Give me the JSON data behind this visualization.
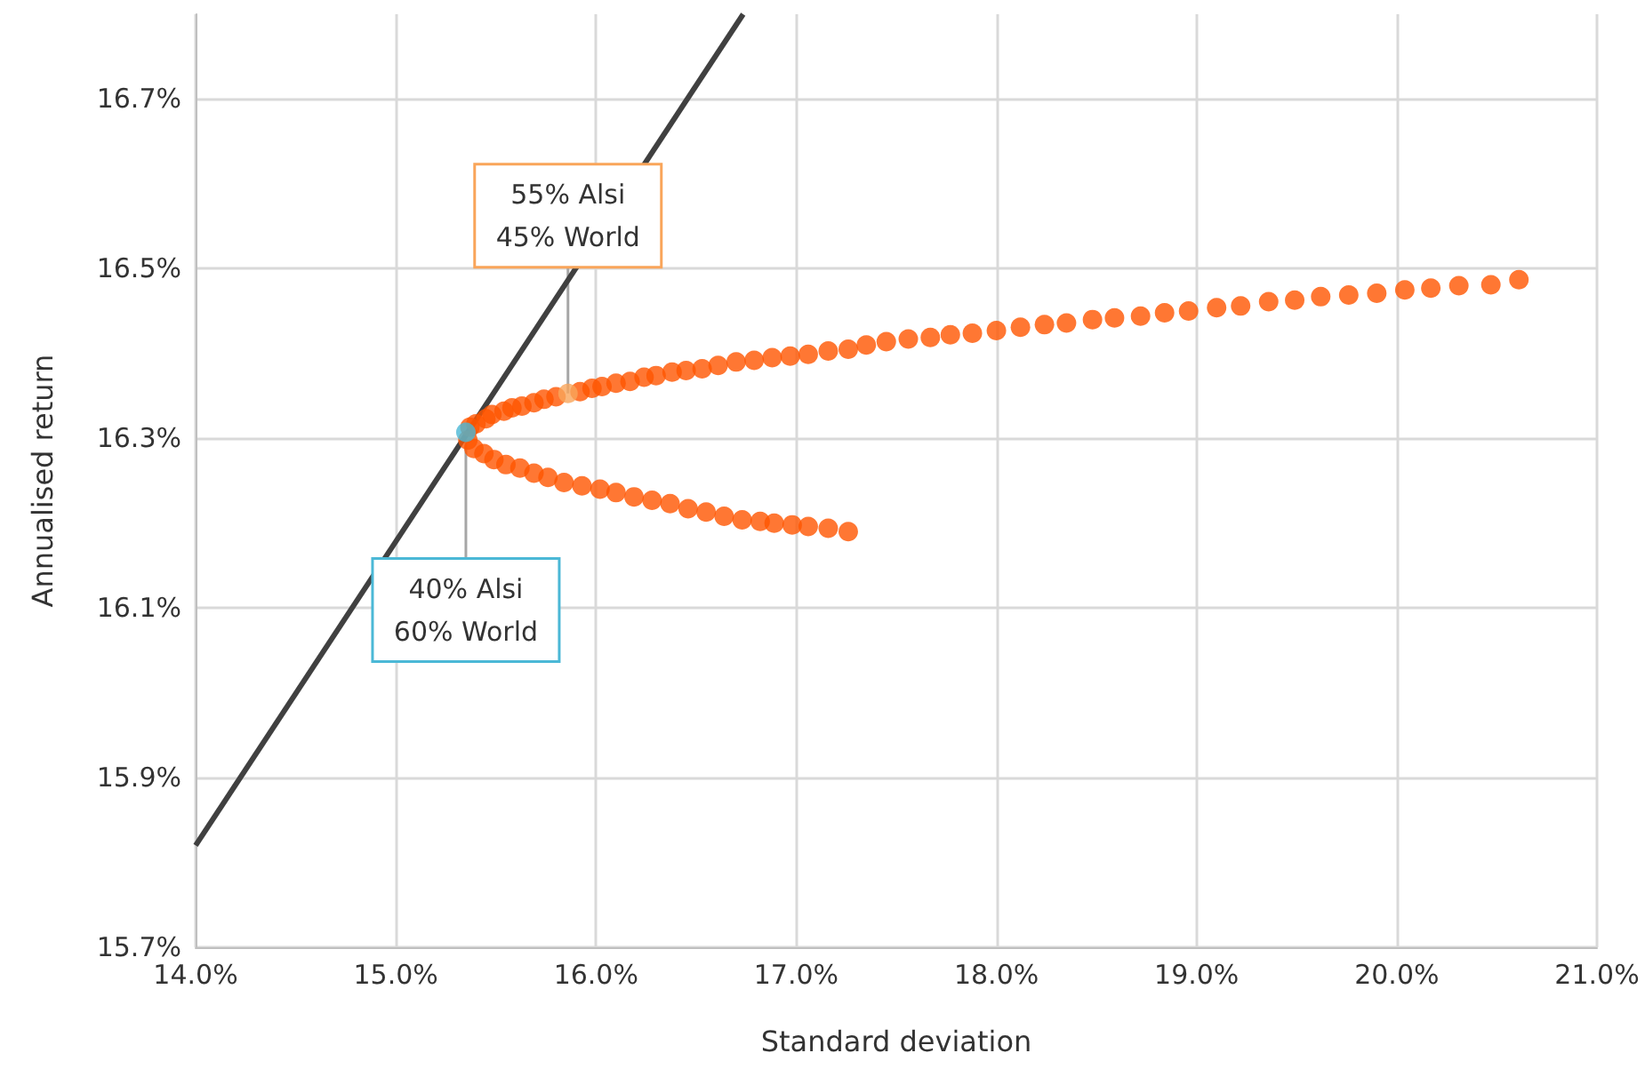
{
  "chart_data": {
    "type": "scatter",
    "xlabel": "Standard deviation",
    "ylabel": "Annualised return",
    "xlim": [
      14,
      21
    ],
    "ylim": [
      15.7,
      16.8
    ],
    "xticks": [
      {
        "value": 14,
        "label": "14.0%"
      },
      {
        "value": 15,
        "label": "15.0%"
      },
      {
        "value": 16,
        "label": "16.0%"
      },
      {
        "value": 17,
        "label": "17.0%"
      },
      {
        "value": 18,
        "label": "18.0%"
      },
      {
        "value": 19,
        "label": "19.0%"
      },
      {
        "value": 20,
        "label": "20.0%"
      },
      {
        "value": 21,
        "label": "21.0%"
      }
    ],
    "yticks": [
      {
        "value": 15.7,
        "label": "15.7%"
      },
      {
        "value": 15.9,
        "label": "15.9%"
      },
      {
        "value": 16.1,
        "label": "16.1%"
      },
      {
        "value": 16.3,
        "label": "16.3%"
      },
      {
        "value": 16.5,
        "label": "16.5%"
      },
      {
        "value": 16.7,
        "label": "16.7%"
      }
    ],
    "grid": true,
    "marker": "circle",
    "series": [
      {
        "color": "#ff5500",
        "x": [
          20.61,
          20.47,
          20.31,
          20.17,
          20.04,
          19.9,
          19.76,
          19.62,
          19.49,
          19.36,
          19.22,
          19.1,
          18.96,
          18.84,
          18.72,
          18.59,
          18.48,
          18.35,
          18.24,
          18.12,
          18.0,
          17.88,
          17.77,
          17.67,
          17.56,
          17.45,
          17.35,
          17.26,
          17.16,
          17.06,
          16.97,
          16.88,
          16.79,
          16.7,
          16.61,
          16.53,
          16.45,
          16.38,
          16.3,
          16.24,
          16.17,
          16.1,
          16.03,
          15.98,
          15.92,
          15.8,
          15.74,
          15.69,
          15.63,
          15.58,
          15.54,
          15.48,
          15.45,
          15.4,
          15.37,
          15.36,
          15.39,
          15.44,
          15.49,
          15.55,
          15.62,
          15.69,
          15.76,
          15.84,
          15.93,
          16.02,
          16.1,
          16.19,
          16.28,
          16.37,
          16.46,
          16.55,
          16.64,
          16.73,
          16.82,
          16.89,
          16.98,
          17.06,
          17.16,
          17.26
        ],
        "values": [
          16.487,
          16.481,
          16.48,
          16.477,
          16.475,
          16.471,
          16.469,
          16.467,
          16.463,
          16.461,
          16.456,
          16.454,
          16.45,
          16.448,
          16.444,
          16.442,
          16.44,
          16.436,
          16.434,
          16.431,
          16.427,
          16.424,
          16.422,
          16.419,
          16.417,
          16.414,
          16.41,
          16.405,
          16.403,
          16.399,
          16.397,
          16.395,
          16.392,
          16.39,
          16.386,
          16.382,
          16.38,
          16.378,
          16.374,
          16.372,
          16.367,
          16.365,
          16.361,
          16.359,
          16.355,
          16.349,
          16.346,
          16.342,
          16.338,
          16.336,
          16.332,
          16.328,
          16.323,
          16.317,
          16.313,
          16.298,
          16.288,
          16.282,
          16.275,
          16.269,
          16.265,
          16.259,
          16.254,
          16.248,
          16.244,
          16.24,
          16.236,
          16.231,
          16.227,
          16.223,
          16.217,
          16.213,
          16.208,
          16.204,
          16.202,
          16.2,
          16.198,
          16.196,
          16.194,
          16.19
        ]
      },
      {
        "color": "#f9a55a",
        "x": [
          15.86
        ],
        "values": [
          16.353
        ]
      },
      {
        "color": "#4bb8d6",
        "x": [
          15.35
        ],
        "values": [
          16.307
        ]
      },
      {
        "type": "line",
        "color": "#404040",
        "marker": "none",
        "x": [
          14.0,
          16.735
        ],
        "values": [
          15.82,
          16.8
        ]
      }
    ],
    "annotations": [
      {
        "text": "55% Alsi\n45% World",
        "x": 15.86,
        "y": 16.353
      },
      {
        "text": "40% Alsi\n60% World",
        "x": 15.35,
        "y": 16.307
      }
    ]
  }
}
